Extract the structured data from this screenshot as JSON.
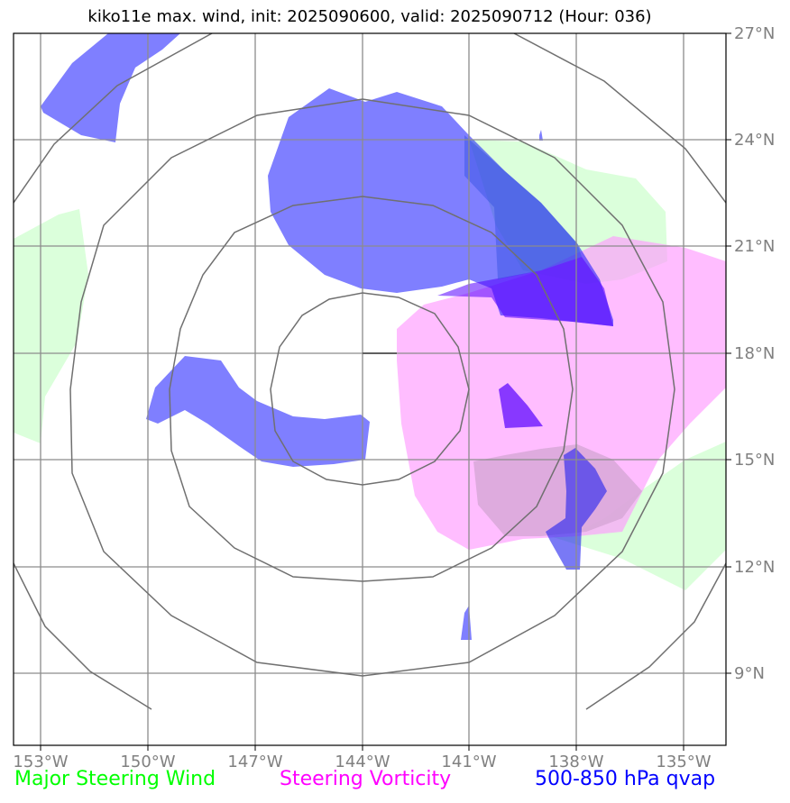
{
  "title": "kiko11e max. wind, init: 2025090600, valid: 2025090712 (Hour: 036)",
  "map": {
    "lon_labels": [
      "153°W",
      "150°W",
      "147°W",
      "144°W",
      "141°W",
      "138°W",
      "135°W"
    ],
    "lat_labels": [
      "27°N",
      "24°N",
      "21°N",
      "18°N",
      "15°N",
      "12°N",
      "9°N"
    ],
    "lon_range": [
      -153.8,
      -133.9
    ],
    "lat_range": [
      6.9,
      27.0
    ],
    "colors": {
      "steering_wind": "#ccffcc",
      "steering_vorticity": "#ff99ff",
      "qvap": "#0000ff",
      "grid": "#8c8c8c",
      "range_rings": "#707070"
    },
    "center": {
      "lon": -144.0,
      "lat": 18.0
    }
  },
  "legend": {
    "wind": "Major Steering Wind",
    "vorticity": "Steering Vorticity",
    "qvap": "500-850 hPa qvap"
  }
}
